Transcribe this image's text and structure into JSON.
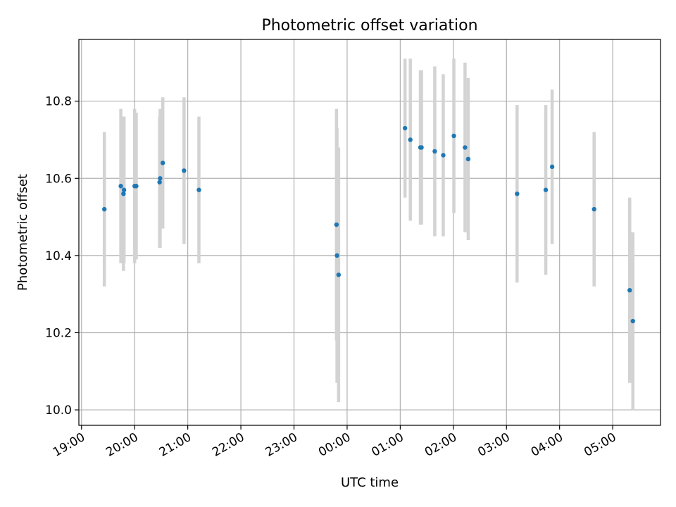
{
  "chart_data": {
    "type": "scatter",
    "title": "Photometric offset variation",
    "xlabel": "UTC time",
    "ylabel": "Photometric offset",
    "x_unit": "hours after 19:00 UTC",
    "xlim": [
      -0.05,
      10.9
    ],
    "ylim": [
      9.96,
      10.96
    ],
    "xtick_labels": [
      "19:00",
      "20:00",
      "21:00",
      "22:00",
      "23:00",
      "00:00",
      "01:00",
      "02:00",
      "03:00",
      "04:00",
      "05:00"
    ],
    "yticks": [
      10.0,
      10.2,
      10.4,
      10.6,
      10.8
    ],
    "ytick_labels": [
      "10.0",
      "10.2",
      "10.4",
      "10.6",
      "10.8"
    ],
    "grid": true,
    "colors": {
      "point": "#1f77b4",
      "errorbar": "#d3d3d3",
      "grid": "#b0b0b0"
    },
    "points": [
      {
        "x": 0.43,
        "y": 10.52,
        "yerr": 0.2
      },
      {
        "x": 0.74,
        "y": 10.58,
        "yerr": 0.2
      },
      {
        "x": 0.79,
        "y": 10.56,
        "yerr": 0.2
      },
      {
        "x": 0.8,
        "y": 10.57,
        "yerr": 0.19
      },
      {
        "x": 1.0,
        "y": 10.58,
        "yerr": 0.2
      },
      {
        "x": 1.03,
        "y": 10.58,
        "yerr": 0.19
      },
      {
        "x": 1.47,
        "y": 10.59,
        "yerr": 0.17
      },
      {
        "x": 1.48,
        "y": 10.6,
        "yerr": 0.18
      },
      {
        "x": 1.53,
        "y": 10.64,
        "yerr": 0.17
      },
      {
        "x": 1.93,
        "y": 10.62,
        "yerr": 0.19
      },
      {
        "x": 2.21,
        "y": 10.57,
        "yerr": 0.19
      },
      {
        "x": 4.8,
        "y": 10.48,
        "yerr": 0.3
      },
      {
        "x": 4.81,
        "y": 10.4,
        "yerr": 0.33
      },
      {
        "x": 4.84,
        "y": 10.35,
        "yerr": 0.33
      },
      {
        "x": 6.09,
        "y": 10.73,
        "yerr": 0.18
      },
      {
        "x": 6.19,
        "y": 10.7,
        "yerr": 0.21
      },
      {
        "x": 6.38,
        "y": 10.68,
        "yerr": 0.2
      },
      {
        "x": 6.4,
        "y": 10.68,
        "yerr": 0.2
      },
      {
        "x": 6.65,
        "y": 10.67,
        "yerr": 0.22
      },
      {
        "x": 6.81,
        "y": 10.66,
        "yerr": 0.21
      },
      {
        "x": 7.01,
        "y": 10.71,
        "yerr": 0.2
      },
      {
        "x": 7.22,
        "y": 10.68,
        "yerr": 0.22
      },
      {
        "x": 7.28,
        "y": 10.65,
        "yerr": 0.21
      },
      {
        "x": 8.2,
        "y": 10.56,
        "yerr": 0.23
      },
      {
        "x": 8.74,
        "y": 10.57,
        "yerr": 0.22
      },
      {
        "x": 8.86,
        "y": 10.63,
        "yerr": 0.2
      },
      {
        "x": 9.65,
        "y": 10.52,
        "yerr": 0.2
      },
      {
        "x": 10.32,
        "y": 10.31,
        "yerr": 0.24
      },
      {
        "x": 10.38,
        "y": 10.23,
        "yerr": 0.23
      }
    ]
  }
}
